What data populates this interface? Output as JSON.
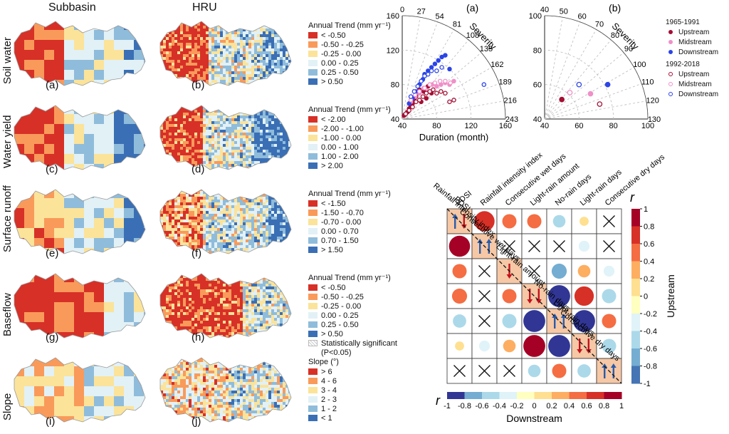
{
  "columns": [
    "Subbasin",
    "HRU"
  ],
  "map_rows": [
    {
      "label": "Soil water",
      "panels": [
        "(a)",
        "(b)"
      ],
      "legend_title": "Annual Trend (mm yr⁻¹)",
      "classes": [
        {
          "label": "< -0.50",
          "color": "#d73027"
        },
        {
          "label": "-0.50 - -0.25",
          "color": "#f99a5a"
        },
        {
          "label": "-0.25 - 0.00",
          "color": "#fbe39a"
        },
        {
          "label": "0.00 - 0.25",
          "color": "#e2f1f6"
        },
        {
          "label": "0.25 - 0.50",
          "color": "#8fbcdb"
        },
        {
          "label": "> 0.50",
          "color": "#3a6fb5"
        }
      ]
    },
    {
      "label": "Water yield",
      "panels": [
        "(c)",
        "(d)"
      ],
      "legend_title": "Annual Trend (mm yr⁻¹)",
      "classes": [
        {
          "label": "< -2.00",
          "color": "#d73027"
        },
        {
          "label": "-2.00 - -1.00",
          "color": "#f99a5a"
        },
        {
          "label": "-1.00 - 0.00",
          "color": "#fbe39a"
        },
        {
          "label": "0.00 - 1.00",
          "color": "#e2f1f6"
        },
        {
          "label": "1.00 - 2.00",
          "color": "#8fbcdb"
        },
        {
          "label": "> 2.00",
          "color": "#3a6fb5"
        }
      ]
    },
    {
      "label": "Surface runoff",
      "panels": [
        "(e)",
        "(f)"
      ],
      "legend_title": "Annual Trend (mm yr⁻¹)",
      "classes": [
        {
          "label": "< -1.50",
          "color": "#d73027"
        },
        {
          "label": "-1.50 - -0.70",
          "color": "#f99a5a"
        },
        {
          "label": "-0.70 - 0.00",
          "color": "#fbe39a"
        },
        {
          "label": "0.00 - 0.70",
          "color": "#e2f1f6"
        },
        {
          "label": "0.70 - 1.50",
          "color": "#8fbcdb"
        },
        {
          "label": "> 1.50",
          "color": "#3a6fb5"
        }
      ]
    },
    {
      "label": "Baseflow",
      "panels": [
        "(g)",
        "(h)"
      ],
      "legend_title": "Annual Trend (mm yr⁻¹)",
      "classes": [
        {
          "label": "< -0.50",
          "color": "#d73027"
        },
        {
          "label": "-0.50 - -0.25",
          "color": "#f99a5a"
        },
        {
          "label": "-0.25 - 0.00",
          "color": "#fbe39a"
        },
        {
          "label": "0.00 - 0.25",
          "color": "#e2f1f6"
        },
        {
          "label": "0.25 - 0.50",
          "color": "#8fbcdb"
        },
        {
          "label": "> 0.50",
          "color": "#3a6fb5"
        }
      ],
      "significance_label": "Statistically significant",
      "significance_sub": "(P<0.05)"
    },
    {
      "label": "Slope",
      "panels": [
        "(i)",
        "(j)"
      ],
      "legend_title": "Slope (°)",
      "classes": [
        {
          "label": "> 6",
          "color": "#d73027"
        },
        {
          "label": "4 - 6",
          "color": "#f99a5a"
        },
        {
          "label": "3 - 4",
          "color": "#fbe39a"
        },
        {
          "label": "2 - 3",
          "color": "#e2f1f6"
        },
        {
          "label": "1 - 2",
          "color": "#8fbcdb"
        },
        {
          "label": "< 1",
          "color": "#3a6fb5"
        }
      ]
    }
  ],
  "chart_data": [
    {
      "type": "scatter",
      "panel_label": "(a)",
      "projection": "polar-quarter",
      "xlabel": "Duration (month)",
      "radial_label": "Severity",
      "radial_ticks": [
        "40",
        "80",
        "120",
        "160"
      ],
      "angular_ticks": [
        "0",
        "27",
        "54",
        "81",
        "108",
        "135",
        "162",
        "189",
        "216",
        "243"
      ],
      "series": [
        {
          "name": "Upstream",
          "period": "1965-1991",
          "filled": true,
          "color": "#a50f34",
          "points": [
            [
              42,
              44
            ],
            [
              44,
              46
            ],
            [
              46,
              48
            ],
            [
              48,
              52
            ],
            [
              50,
              55
            ],
            [
              52,
              58
            ],
            [
              54,
              62
            ],
            [
              56,
              66
            ],
            [
              58,
              70
            ],
            [
              60,
              74
            ],
            [
              62,
              60
            ],
            [
              65,
              72
            ],
            [
              68,
              64
            ],
            [
              70,
              78
            ],
            [
              74,
              70
            ]
          ]
        },
        {
          "name": "Midstream",
          "period": "1965-1991",
          "filled": true,
          "color": "#f08fc8",
          "points": [
            [
              50,
              60
            ],
            [
              55,
              66
            ],
            [
              60,
              70
            ],
            [
              65,
              76
            ],
            [
              70,
              72
            ],
            [
              75,
              80
            ],
            [
              80,
              78
            ],
            [
              85,
              80
            ],
            [
              90,
              82
            ],
            [
              95,
              80
            ],
            [
              100,
              84
            ]
          ]
        },
        {
          "name": "Downstream",
          "period": "1965-1991",
          "filled": true,
          "color": "#2b44e8",
          "points": [
            [
              48,
              58
            ],
            [
              52,
              64
            ],
            [
              56,
              72
            ],
            [
              60,
              80
            ],
            [
              64,
              86
            ],
            [
              66,
              92
            ],
            [
              70,
              96
            ],
            [
              74,
              100
            ],
            [
              78,
              104
            ],
            [
              82,
              108
            ],
            [
              86,
              112
            ],
            [
              90,
              114
            ],
            [
              95,
              98
            ]
          ]
        },
        {
          "name": "Upstream",
          "period": "1992-2018",
          "filled": false,
          "color": "#a50f34",
          "points": [
            [
              44,
              46
            ],
            [
              48,
              50
            ],
            [
              52,
              54
            ],
            [
              56,
              60
            ],
            [
              60,
              62
            ],
            [
              64,
              66
            ],
            [
              68,
              70
            ],
            [
              72,
              72
            ],
            [
              76,
              74
            ],
            [
              80,
              70
            ],
            [
              85,
              72
            ],
            [
              90,
              70
            ],
            [
              95,
              60
            ],
            [
              100,
              62
            ]
          ]
        },
        {
          "name": "Midstream",
          "period": "1992-2018",
          "filled": false,
          "color": "#f08fc8",
          "points": [
            [
              50,
              62
            ],
            [
              55,
              68
            ],
            [
              60,
              72
            ],
            [
              66,
              76
            ],
            [
              72,
              80
            ],
            [
              78,
              82
            ],
            [
              84,
              84
            ],
            [
              90,
              84
            ],
            [
              96,
              82
            ]
          ]
        },
        {
          "name": "Downstream",
          "period": "1992-2018",
          "filled": false,
          "color": "#2b44e8",
          "points": [
            [
              50,
              66
            ],
            [
              54,
              72
            ],
            [
              58,
              78
            ],
            [
              62,
              84
            ],
            [
              66,
              90
            ],
            [
              70,
              92
            ],
            [
              74,
              96
            ],
            [
              80,
              96
            ],
            [
              86,
              100
            ],
            [
              135,
              80
            ]
          ]
        }
      ]
    },
    {
      "type": "scatter",
      "panel_label": "(b)",
      "projection": "polar-quarter",
      "xlabel": "",
      "radial_label": "Severity",
      "radial_ticks": [
        "40",
        "60",
        "80",
        "100"
      ],
      "angular_ticks": [
        "40",
        "50",
        "60",
        "70",
        "80",
        "90",
        "100",
        "110",
        "120",
        "130"
      ],
      "series": [
        {
          "name": "Upstream",
          "period": "1965-1991",
          "filled": true,
          "color": "#a50f34",
          "points": [
            [
              55,
              57
            ]
          ]
        },
        {
          "name": "Midstream",
          "period": "1965-1991",
          "filled": true,
          "color": "#f08fc8",
          "points": [
            [
              80,
              62
            ]
          ]
        },
        {
          "name": "Downstream",
          "period": "1965-1991",
          "filled": true,
          "color": "#2b44e8",
          "points": [
            [
              95,
              70
            ]
          ]
        },
        {
          "name": "Upstream",
          "period": "1992-2018",
          "filled": false,
          "color": "#a50f34",
          "points": [
            [
              88,
              53
            ]
          ]
        },
        {
          "name": "Midstream",
          "period": "1992-2018",
          "filled": false,
          "color": "#f08fc8",
          "points": [
            [
              62,
              63
            ]
          ]
        },
        {
          "name": "Downstream",
          "period": "1992-2018",
          "filled": false,
          "color": "#2b44e8",
          "points": [
            [
              70,
              70
            ]
          ]
        }
      ]
    },
    {
      "type": "heatmap",
      "variables": [
        "PDSI",
        "Rainfall intensity index",
        "Consecutive wet days",
        "Light-rain amount",
        "No-rain days",
        "Light-rain days",
        "Consecutive dry days"
      ],
      "upper_label": "Upstream",
      "lower_label": "Downstream",
      "colorbar_label": "r",
      "colorbar_ticks": [
        "-1",
        "-0.8",
        "-0.6",
        "-0.4",
        "-0.2",
        "0",
        "0.2",
        "0.4",
        "0.6",
        "0.8",
        "1"
      ],
      "r_matrix": [
        [
          null,
          0.85,
          0.5,
          0.5,
          -0.4,
          0.2,
          -0.1
        ],
        [
          0.9,
          null,
          0.1,
          0.02,
          0.1,
          -0.3,
          0.15
        ],
        [
          0.5,
          0.02,
          null,
          0.45,
          -0.55,
          0.4,
          -0.3
        ],
        [
          0.55,
          0.03,
          0.5,
          null,
          -0.95,
          0.8,
          -0.5
        ],
        [
          -0.45,
          0.02,
          -0.5,
          -0.95,
          null,
          -0.95,
          0.5
        ],
        [
          0.2,
          -0.3,
          0.4,
          0.95,
          -0.95,
          null,
          -0.5
        ],
        [
          0.03,
          0.03,
          0.02,
          -0.4,
          0.5,
          -0.45,
          null
        ]
      ],
      "crosses": [
        [
          0,
          6
        ],
        [
          1,
          2
        ],
        [
          1,
          3
        ],
        [
          1,
          4
        ],
        [
          1,
          6
        ],
        [
          2,
          1
        ],
        [
          2,
          3
        ],
        [
          3,
          1
        ],
        [
          4,
          1
        ],
        [
          6,
          0
        ],
        [
          6,
          1
        ],
        [
          6,
          2
        ]
      ],
      "diagonal_arrows": [
        [
          {
            "dir": "up",
            "color": "#2a5caa"
          },
          {
            "dir": "down",
            "color": "#c4121c"
          }
        ],
        [
          {
            "dir": "up",
            "color": "#2a5caa"
          },
          {
            "dir": "up",
            "color": "#2a5caa"
          }
        ],
        [
          {
            "dir": "down",
            "color": "#c4121c"
          }
        ],
        [
          {
            "dir": "down",
            "color": "#c4121c"
          },
          {
            "dir": "down",
            "color": "#c4121c"
          }
        ],
        [
          {
            "dir": "up",
            "color": "#2a5caa"
          },
          {
            "dir": "up",
            "color": "#2a5caa"
          }
        ],
        [
          {
            "dir": "down",
            "color": "#c4121c"
          },
          {
            "dir": "down",
            "color": "#c4121c"
          }
        ],
        [
          {
            "dir": "up",
            "color": "#2a5caa"
          },
          {
            "dir": "up",
            "color": "#2a5caa"
          }
        ]
      ]
    }
  ],
  "polar_legend": [
    {
      "heading": "1965-1991",
      "entries": [
        {
          "label": "Upstream",
          "color": "#a50f34",
          "filled": true
        },
        {
          "label": "Midstream",
          "color": "#f08fc8",
          "filled": true
        },
        {
          "label": "Downstream",
          "color": "#2b44e8",
          "filled": true
        }
      ]
    },
    {
      "heading": "1992-2018",
      "entries": [
        {
          "label": "Upstream",
          "color": "#a50f34",
          "filled": false
        },
        {
          "label": "Midstream",
          "color": "#f08fc8",
          "filled": false
        },
        {
          "label": "Downstream",
          "color": "#2b44e8",
          "filled": false
        }
      ]
    }
  ]
}
